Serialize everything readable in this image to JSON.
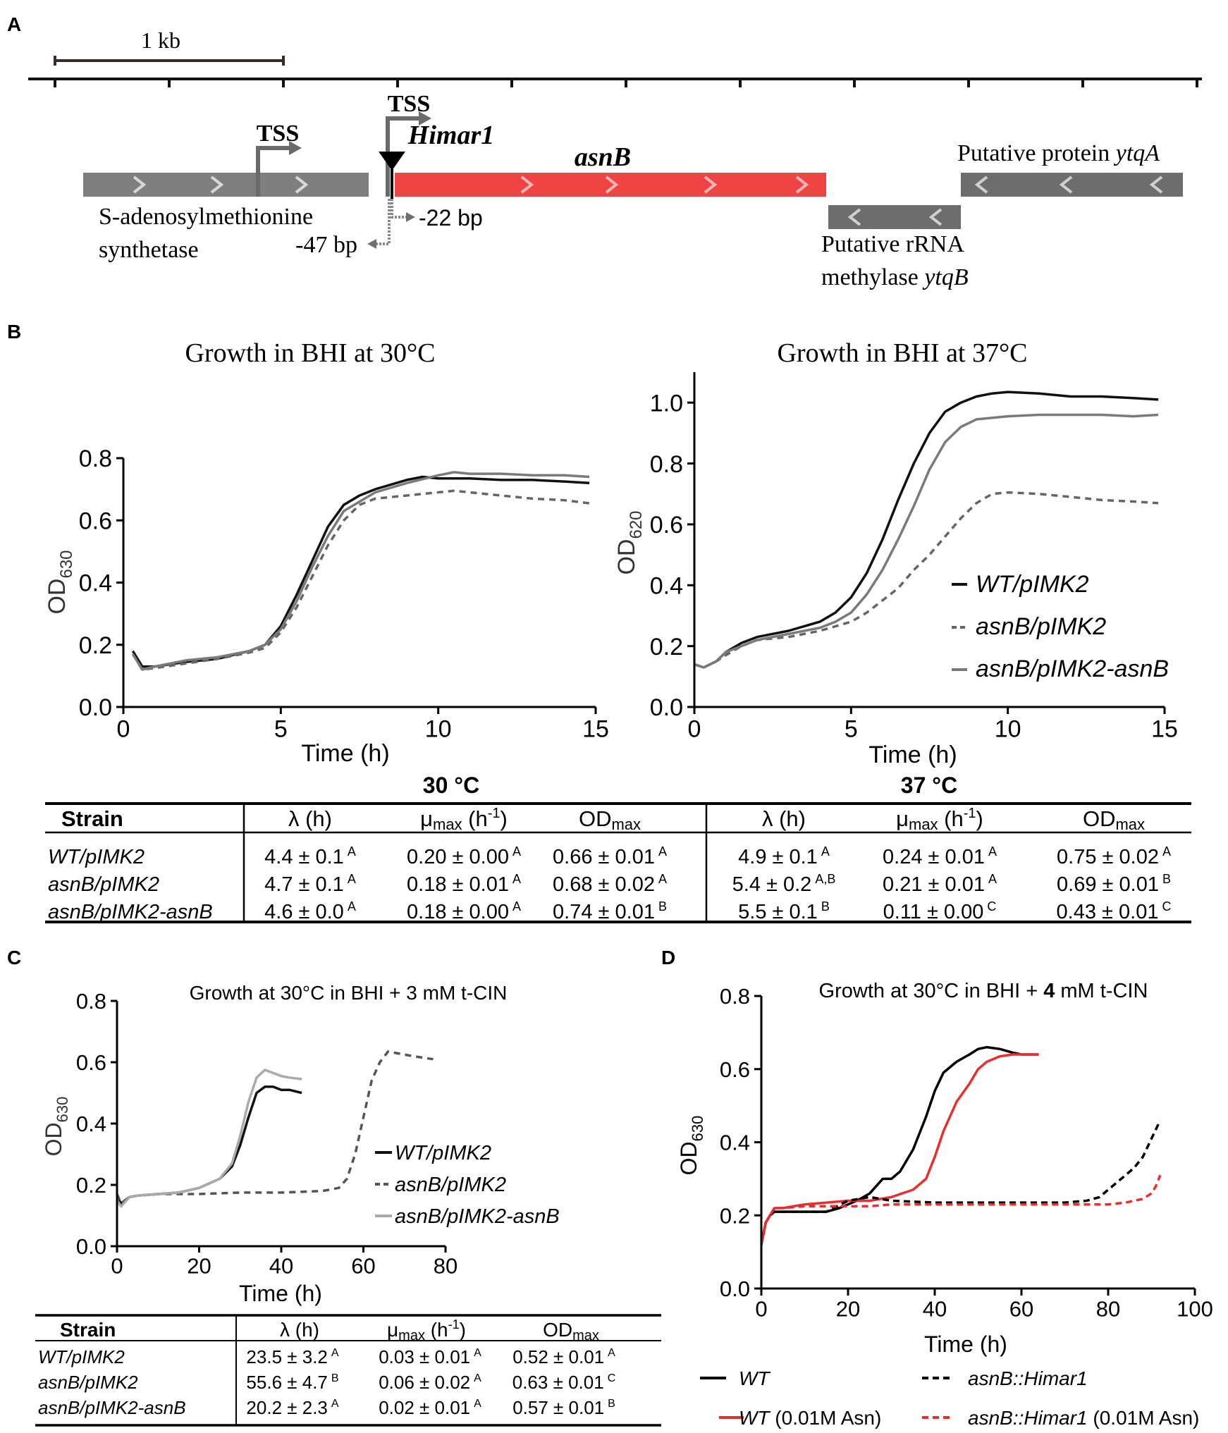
{
  "panel_labels": {
    "a": "A",
    "b": "B",
    "c": "C",
    "d": "D"
  },
  "panel_a": {
    "scale_label": "1 kb",
    "tss_1": "TSS",
    "tss_2": "TSS",
    "himar_label": "Himar1",
    "asnb_label": "asnB",
    "sam_label_1": "S-adenosylmethionine",
    "sam_label_2": "synthetase",
    "minus47": "-47 bp",
    "minus22": "-22 bp",
    "rrna_label_1": "Putative rRNA",
    "rrna_label_2_plain": "methylase ",
    "rrna_label_2_ital": "ytqB",
    "ytqa_label_plain": "Putative protein ",
    "ytqa_label_ital": "ytqA",
    "colors": {
      "gene": "#808080",
      "asnB": "#ee4444",
      "ytq": "#6d6d6d"
    }
  },
  "chart_data": [
    {
      "id": "B30",
      "type": "line",
      "title": "Growth in BHI at 30°C",
      "xlabel": "Time (h)",
      "ylabel_main": "OD",
      "ylabel_sub": "630",
      "xlim": [
        0,
        15
      ],
      "ylim": [
        0,
        0.8
      ],
      "xticks": [
        0,
        5,
        10,
        15
      ],
      "yticks": [
        0.0,
        0.2,
        0.4,
        0.6,
        0.8
      ],
      "ytick_labels": [
        "0.0",
        "0.2",
        "0.4",
        "0.6",
        "0.8"
      ],
      "series": [
        {
          "name": "WT/pIMK2",
          "color": "#111111",
          "dash": "",
          "x": [
            0.3,
            0.6,
            1,
            2,
            3,
            4,
            4.5,
            5,
            5.5,
            6,
            6.5,
            7,
            7.5,
            8,
            9,
            9.5,
            10,
            11,
            12,
            13,
            14,
            14.8
          ],
          "y": [
            0.18,
            0.13,
            0.13,
            0.145,
            0.155,
            0.18,
            0.2,
            0.26,
            0.36,
            0.47,
            0.58,
            0.65,
            0.68,
            0.7,
            0.73,
            0.74,
            0.735,
            0.735,
            0.73,
            0.73,
            0.725,
            0.72
          ]
        },
        {
          "name": "asnB/pIMK2",
          "color": "#666666",
          "dash": "9,7",
          "x": [
            0.3,
            0.6,
            1,
            2,
            3,
            4,
            4.5,
            5,
            5.5,
            6,
            6.5,
            7,
            7.5,
            8,
            9,
            10,
            10.5,
            11,
            12,
            13,
            14,
            14.8
          ],
          "y": [
            0.17,
            0.12,
            0.125,
            0.14,
            0.155,
            0.175,
            0.19,
            0.24,
            0.32,
            0.42,
            0.52,
            0.6,
            0.65,
            0.67,
            0.68,
            0.69,
            0.695,
            0.69,
            0.68,
            0.67,
            0.665,
            0.655
          ]
        },
        {
          "name": "asnB/pIMK2-asnB",
          "color": "#7a7a7a",
          "dash": "",
          "x": [
            0.3,
            0.6,
            1,
            2,
            3,
            4,
            4.5,
            5,
            5.5,
            6,
            6.5,
            7,
            7.5,
            8,
            9,
            10,
            10.5,
            11,
            12,
            13,
            14,
            14.8
          ],
          "y": [
            0.17,
            0.12,
            0.13,
            0.15,
            0.16,
            0.18,
            0.2,
            0.25,
            0.34,
            0.45,
            0.55,
            0.63,
            0.66,
            0.69,
            0.72,
            0.745,
            0.755,
            0.75,
            0.75,
            0.745,
            0.745,
            0.74
          ]
        }
      ]
    },
    {
      "id": "B37",
      "type": "line",
      "title": "Growth in BHI at 37°C",
      "xlabel": "Time (h)",
      "ylabel_main": "OD",
      "ylabel_sub": "620",
      "xlim": [
        0,
        15
      ],
      "ylim": [
        0,
        1.1
      ],
      "xticks": [
        0,
        5,
        10,
        15
      ],
      "yticks": [
        0.0,
        0.2,
        0.4,
        0.6,
        0.8,
        1.0
      ],
      "ytick_labels": [
        "0.0",
        "0.2",
        "0.4",
        "0.6",
        "0.8",
        "1.0"
      ],
      "series": [
        {
          "name": "WT/pIMK2",
          "color": "#111111",
          "dash": "",
          "x": [
            0,
            0.3,
            0.7,
            1,
            1.5,
            2,
            3,
            4,
            4.5,
            5,
            5.5,
            6,
            6.5,
            7,
            7.5,
            8,
            8.5,
            9,
            9.5,
            10,
            11,
            12,
            13,
            14,
            14.8
          ],
          "y": [
            0.14,
            0.13,
            0.15,
            0.18,
            0.21,
            0.23,
            0.25,
            0.28,
            0.31,
            0.36,
            0.44,
            0.55,
            0.68,
            0.8,
            0.9,
            0.97,
            1.0,
            1.02,
            1.03,
            1.035,
            1.03,
            1.02,
            1.02,
            1.015,
            1.01
          ]
        },
        {
          "name": "asnB/pIMK2",
          "color": "#666666",
          "dash": "9,7",
          "x": [
            0,
            0.3,
            0.7,
            1,
            1.5,
            2,
            3,
            4,
            5,
            5.5,
            6,
            6.5,
            7,
            7.5,
            8,
            8.5,
            9,
            9.5,
            10,
            11,
            12,
            13,
            14,
            14.8
          ],
          "y": [
            0.14,
            0.13,
            0.15,
            0.17,
            0.2,
            0.22,
            0.23,
            0.25,
            0.28,
            0.31,
            0.35,
            0.39,
            0.45,
            0.5,
            0.56,
            0.62,
            0.67,
            0.7,
            0.705,
            0.7,
            0.69,
            0.68,
            0.675,
            0.67
          ]
        },
        {
          "name": "asnB/pIMK2-asnB",
          "color": "#7a7a7a",
          "dash": "",
          "x": [
            0,
            0.3,
            0.7,
            1,
            1.5,
            2,
            3,
            4,
            4.5,
            5,
            5.5,
            6,
            6.5,
            7,
            7.5,
            8,
            8.5,
            9,
            9.5,
            10,
            11,
            12,
            13,
            14,
            14.8
          ],
          "y": [
            0.14,
            0.13,
            0.15,
            0.18,
            0.2,
            0.22,
            0.24,
            0.26,
            0.28,
            0.31,
            0.37,
            0.45,
            0.55,
            0.66,
            0.78,
            0.87,
            0.92,
            0.945,
            0.95,
            0.955,
            0.96,
            0.96,
            0.96,
            0.955,
            0.96
          ]
        }
      ],
      "legend": [
        "WT/pIMK2",
        "asnB/pIMK2",
        "asnB/pIMK2-asnB"
      ]
    },
    {
      "id": "C",
      "type": "line",
      "title": "Growth at 30°C in BHI + 3 mM t-CIN",
      "xlabel": "Time (h)",
      "ylabel_main": "OD",
      "ylabel_sub": "630",
      "xlim": [
        0,
        80
      ],
      "ylim": [
        0,
        0.8
      ],
      "xticks": [
        0,
        20,
        40,
        60,
        80
      ],
      "yticks": [
        0.0,
        0.2,
        0.4,
        0.6,
        0.8
      ],
      "ytick_labels": [
        "0.0",
        "0.2",
        "0.4",
        "0.6",
        "0.8"
      ],
      "series": [
        {
          "name": "WT/pIMK2",
          "color": "#111111",
          "dash": "",
          "x": [
            0,
            1,
            3,
            5,
            10,
            15,
            20,
            25,
            28,
            30,
            32,
            34,
            36,
            38,
            40,
            42,
            45
          ],
          "y": [
            0.16,
            0.14,
            0.16,
            0.165,
            0.17,
            0.175,
            0.19,
            0.22,
            0.26,
            0.33,
            0.42,
            0.5,
            0.52,
            0.52,
            0.51,
            0.51,
            0.5
          ]
        },
        {
          "name": "asnB/pIMK2",
          "color": "#555555",
          "dash": "9,7",
          "x": [
            0,
            1,
            3,
            5,
            10,
            15,
            20,
            30,
            40,
            50,
            54,
            56,
            58,
            60,
            62,
            64,
            66,
            68,
            72,
            77
          ],
          "y": [
            0.17,
            0.14,
            0.16,
            0.165,
            0.17,
            0.17,
            0.17,
            0.175,
            0.175,
            0.18,
            0.19,
            0.22,
            0.3,
            0.42,
            0.54,
            0.6,
            0.635,
            0.63,
            0.62,
            0.61
          ]
        },
        {
          "name": "asnB/pIMK2-asnB",
          "color": "#aaaaaa",
          "dash": "",
          "x": [
            0,
            1,
            3,
            5,
            10,
            15,
            20,
            25,
            28,
            30,
            32,
            34,
            36,
            38,
            40,
            42,
            45
          ],
          "y": [
            0.15,
            0.13,
            0.16,
            0.165,
            0.17,
            0.175,
            0.19,
            0.22,
            0.27,
            0.36,
            0.47,
            0.55,
            0.575,
            0.565,
            0.555,
            0.55,
            0.545
          ]
        }
      ],
      "legend": [
        "WT/pIMK2",
        "asnB/pIMK2",
        "asnB/pIMK2-asnB"
      ]
    },
    {
      "id": "D",
      "type": "line",
      "title_pre": "Growth at 30°C in BHI + ",
      "title_bold": "4",
      "title_post": " mM t-CIN",
      "xlabel": "Time (h)",
      "ylabel_main": "OD",
      "ylabel_sub": "630",
      "xlim": [
        0,
        100
      ],
      "ylim": [
        0,
        0.8
      ],
      "xticks": [
        0,
        20,
        40,
        60,
        80,
        100
      ],
      "yticks": [
        0.0,
        0.2,
        0.4,
        0.6,
        0.8
      ],
      "ytick_labels": [
        "0.0",
        "0.2",
        "0.4",
        "0.6",
        "0.8"
      ],
      "series": [
        {
          "name": "WT",
          "color": "#000000",
          "dash": "",
          "x": [
            0,
            1,
            2,
            3,
            5,
            10,
            15,
            18,
            20,
            22,
            25,
            28,
            30,
            32,
            35,
            38,
            40,
            42,
            45,
            48,
            50,
            52,
            55,
            58,
            60,
            62,
            64
          ],
          "y": [
            0.12,
            0.18,
            0.2,
            0.21,
            0.21,
            0.21,
            0.21,
            0.22,
            0.23,
            0.24,
            0.26,
            0.3,
            0.3,
            0.32,
            0.38,
            0.47,
            0.54,
            0.59,
            0.62,
            0.64,
            0.655,
            0.66,
            0.655,
            0.645,
            0.64,
            0.64,
            0.64
          ]
        },
        {
          "name": "WT (0.01M Asn)",
          "color": "#e63030",
          "dash": "",
          "x": [
            0,
            1,
            2,
            3,
            5,
            10,
            15,
            20,
            25,
            30,
            35,
            38,
            40,
            42,
            45,
            48,
            50,
            52,
            55,
            58,
            60,
            62,
            64
          ],
          "y": [
            0.12,
            0.18,
            0.2,
            0.22,
            0.22,
            0.23,
            0.235,
            0.24,
            0.24,
            0.25,
            0.27,
            0.3,
            0.36,
            0.43,
            0.51,
            0.56,
            0.6,
            0.62,
            0.635,
            0.64,
            0.64,
            0.64,
            0.64
          ]
        },
        {
          "name": "asnB::Himar1",
          "color": "#000000",
          "dash": "9,6",
          "x": [
            0,
            1,
            2,
            3,
            5,
            10,
            15,
            20,
            25,
            30,
            40,
            50,
            60,
            70,
            75,
            78,
            80,
            82,
            84,
            86,
            88,
            90,
            92
          ],
          "y": [
            0.12,
            0.18,
            0.2,
            0.21,
            0.21,
            0.21,
            0.21,
            0.24,
            0.25,
            0.24,
            0.235,
            0.235,
            0.235,
            0.235,
            0.24,
            0.25,
            0.27,
            0.29,
            0.31,
            0.33,
            0.36,
            0.41,
            0.46
          ]
        },
        {
          "name": "asnB::Himar1 (0.01M Asn)",
          "color": "#e63030",
          "dash": "9,6",
          "x": [
            0,
            1,
            2,
            3,
            5,
            10,
            15,
            20,
            25,
            30,
            40,
            50,
            60,
            70,
            80,
            84,
            86,
            88,
            90,
            91,
            92
          ],
          "y": [
            0.12,
            0.18,
            0.2,
            0.22,
            0.22,
            0.225,
            0.225,
            0.225,
            0.225,
            0.23,
            0.23,
            0.23,
            0.23,
            0.23,
            0.23,
            0.235,
            0.24,
            0.245,
            0.26,
            0.28,
            0.31
          ]
        }
      ],
      "legend": {
        "wt": "WT",
        "wt_asn_ital": "WT",
        "wt_asn_plain": " (0.01M Asn)",
        "mut": "asnB::Himar1",
        "mut_asn_ital": "asnB::Himar1",
        "mut_asn_plain": " (0.01M Asn)"
      }
    }
  ],
  "table_b": {
    "group_30": "30 °C",
    "group_37": "37 °C",
    "col_strain": "Strain",
    "col_lambda": "λ (h)",
    "col_mu": "μ",
    "col_mu_sub": "max",
    "col_mu_unit": " (h",
    "col_mu_exp": "-1",
    "col_mu_close": ")",
    "col_od": "OD",
    "col_od_sub": "max",
    "rows": [
      {
        "strain": "WT/pIMK2",
        "l30": "4.4 ± 0.1",
        "l30s": "A",
        "m30": "0.20 ± 0.00",
        "m30s": "A",
        "o30": "0.66 ± 0.01",
        "o30s": "A",
        "l37": "4.9 ± 0.1",
        "l37s": "A",
        "m37": "0.24 ± 0.01",
        "m37s": "A",
        "o37": "0.75 ± 0.02",
        "o37s": "A"
      },
      {
        "strain": "asnB/pIMK2",
        "l30": "4.7 ± 0.1",
        "l30s": "A",
        "m30": "0.18 ± 0.01",
        "m30s": "A",
        "o30": "0.68 ± 0.02",
        "o30s": "A",
        "l37": "5.4 ± 0.2",
        "l37s": "A,B",
        "m37": "0.21 ± 0.01",
        "m37s": "A",
        "o37": "0.69 ± 0.01",
        "o37s": "B"
      },
      {
        "strain": "asnB/pIMK2-asnB",
        "l30": "4.6 ± 0.0",
        "l30s": "A",
        "m30": "0.18 ± 0.00",
        "m30s": "A",
        "o30": "0.74 ± 0.01",
        "o30s": "B",
        "l37": "5.5 ± 0.1",
        "l37s": "B",
        "m37": "0.11 ± 0.00",
        "m37s": "C",
        "o37": "0.43 ± 0.01",
        "o37s": "C"
      }
    ]
  },
  "table_c": {
    "col_strain": "Strain",
    "col_lambda": "λ (h)",
    "col_mu": "μ",
    "col_mu_sub": "max",
    "col_mu_unit": " (h",
    "col_mu_exp": "-1",
    "col_mu_close": ")",
    "col_od": "OD",
    "col_od_sub": "max",
    "rows": [
      {
        "strain": "WT/pIMK2",
        "l": "23.5 ± 3.2",
        "ls": "A",
        "m": "0.03 ± 0.01",
        "ms": "A",
        "o": "0.52 ± 0.01",
        "os": "A"
      },
      {
        "strain": "asnB/pIMK2",
        "l": "55.6 ± 4.7",
        "ls": "B",
        "m": "0.06 ± 0.02",
        "ms": "A",
        "o": "0.63 ± 0.01",
        "os": "C"
      },
      {
        "strain": "asnB/pIMK2-asnB",
        "l": "20.2 ± 2.3",
        "ls": "A",
        "m": "0.02 ± 0.01",
        "ms": "A",
        "o": "0.57 ± 0.01",
        "os": "B"
      }
    ]
  }
}
